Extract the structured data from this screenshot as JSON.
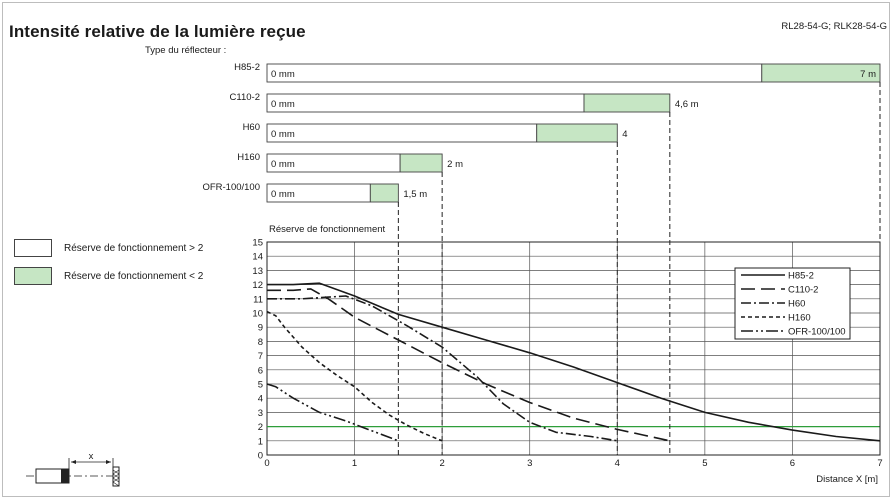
{
  "header": {
    "title": "Intensité relative de la lumière reçue",
    "model": "RL28-54-G; RLK28-54-G",
    "subtitle": "Type du réflecteur :"
  },
  "colors": {
    "reserve_low": "#c6e6c4",
    "reserve_high": "#ffffff",
    "threshold_line": "#2e9e3a",
    "ink": "#1a1a1a"
  },
  "legend_left": [
    {
      "label": "Réserve de fonctionnement > 2",
      "color": "#ffffff"
    },
    {
      "label": "Réserve de fonctionnement < 2",
      "color": "#c6e6c4"
    }
  ],
  "bars": [
    {
      "reflector": "H85-2",
      "start_label": "0 mm",
      "range_m": 7.0,
      "reserve2_m": 5.65,
      "range_label": "7 m",
      "label_inside": true
    },
    {
      "reflector": "C110-2",
      "start_label": "0 mm",
      "range_m": 4.6,
      "reserve2_m": 3.62,
      "range_label": "4,6 m",
      "label_inside": false
    },
    {
      "reflector": "H60",
      "start_label": "0 mm",
      "range_m": 4.0,
      "reserve2_m": 3.08,
      "range_label": "4",
      "label_inside": false
    },
    {
      "reflector": "H160",
      "start_label": "0 mm",
      "range_m": 2.0,
      "reserve2_m": 1.52,
      "range_label": "2 m",
      "label_inside": false
    },
    {
      "reflector": "OFR-100/100",
      "start_label": "0 mm",
      "range_m": 1.5,
      "reserve2_m": 1.18,
      "range_label": "1,5 m",
      "label_inside": false
    }
  ],
  "chart_data": {
    "type": "line",
    "ylabel": "Réserve de fonctionnement",
    "xlabel": "Distance X [m]",
    "xlim": [
      0,
      7
    ],
    "ylim": [
      0,
      15
    ],
    "x_ticks": [
      "0",
      "1",
      "2",
      "3",
      "4",
      "5",
      "6",
      "7"
    ],
    "y_ticks": [
      "0",
      "1",
      "2",
      "3",
      "4",
      "5",
      "6",
      "7",
      "8",
      "9",
      "10",
      "11",
      "12",
      "13",
      "14",
      "15"
    ],
    "threshold": 2,
    "grid": true,
    "legend_position": "top-right",
    "series": [
      {
        "name": "H85-2",
        "dash": "",
        "points": [
          [
            0,
            12
          ],
          [
            0.3,
            12
          ],
          [
            0.6,
            12.1
          ],
          [
            1,
            11.2
          ],
          [
            1.5,
            9.9
          ],
          [
            2,
            9.0
          ],
          [
            2.5,
            8.1
          ],
          [
            3,
            7.2
          ],
          [
            3.5,
            6.2
          ],
          [
            4,
            5.1
          ],
          [
            4.5,
            4.0
          ],
          [
            5,
            3.0
          ],
          [
            5.5,
            2.3
          ],
          [
            6,
            1.75
          ],
          [
            6.5,
            1.3
          ],
          [
            7,
            1.0
          ]
        ]
      },
      {
        "name": "C110-2",
        "dash": "14,6",
        "points": [
          [
            0,
            11.6
          ],
          [
            0.3,
            11.6
          ],
          [
            0.5,
            11.7
          ],
          [
            0.7,
            11.0
          ],
          [
            1,
            9.7
          ],
          [
            1.5,
            8.1
          ],
          [
            2,
            6.5
          ],
          [
            2.5,
            5.0
          ],
          [
            3,
            3.7
          ],
          [
            3.5,
            2.6
          ],
          [
            4,
            1.8
          ],
          [
            4.3,
            1.4
          ],
          [
            4.6,
            1.0
          ]
        ]
      },
      {
        "name": "H60",
        "dash": "10,3,2,3",
        "points": [
          [
            0,
            11.0
          ],
          [
            0.4,
            11.0
          ],
          [
            0.9,
            11.2
          ],
          [
            1.2,
            10.5
          ],
          [
            1.6,
            9.1
          ],
          [
            2,
            7.6
          ],
          [
            2.4,
            5.5
          ],
          [
            2.7,
            3.6
          ],
          [
            3,
            2.3
          ],
          [
            3.3,
            1.6
          ],
          [
            3.7,
            1.3
          ],
          [
            4,
            1.0
          ]
        ]
      },
      {
        "name": "H160",
        "dash": "4,3",
        "points": [
          [
            0,
            10.1
          ],
          [
            0.1,
            9.8
          ],
          [
            0.2,
            9.0
          ],
          [
            0.4,
            7.6
          ],
          [
            0.6,
            6.5
          ],
          [
            0.8,
            5.6
          ],
          [
            1,
            4.8
          ],
          [
            1.2,
            3.7
          ],
          [
            1.4,
            2.8
          ],
          [
            1.6,
            2.1
          ],
          [
            1.8,
            1.5
          ],
          [
            2,
            1.0
          ]
        ]
      },
      {
        "name": "OFR-100/100",
        "dash": "12,3,2,3,2,3",
        "points": [
          [
            0,
            5.0
          ],
          [
            0.1,
            4.8
          ],
          [
            0.3,
            4.0
          ],
          [
            0.6,
            3.0
          ],
          [
            0.9,
            2.4
          ],
          [
            1.2,
            1.7
          ],
          [
            1.5,
            1.0
          ]
        ]
      }
    ]
  },
  "diagram": {
    "distance_label": "x"
  }
}
